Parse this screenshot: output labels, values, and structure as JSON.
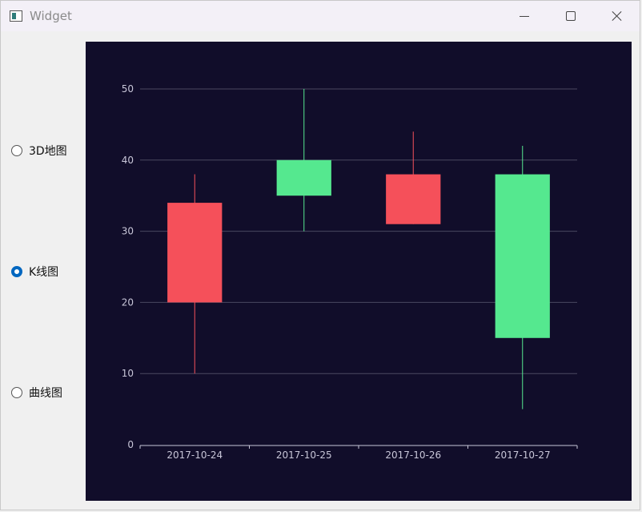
{
  "window": {
    "title": "Widget",
    "icon": "window-app-icon",
    "controls": [
      "minimize-icon",
      "maximize-icon",
      "close-icon"
    ]
  },
  "options": [
    {
      "label": "3D地图",
      "checked": false
    },
    {
      "label": "K线图",
      "checked": true
    },
    {
      "label": "曲线图",
      "checked": false
    }
  ],
  "colors": {
    "background": "#110d2a",
    "increasing": "#55e88f",
    "decreasing": "#f5505a",
    "grid": "#4a4860",
    "axis_text": "#c8c6d8",
    "radio_accent": "#0067c0"
  },
  "chart_data": {
    "type": "candlestick",
    "categories": [
      "2017-10-24",
      "2017-10-25",
      "2017-10-26",
      "2017-10-27"
    ],
    "series": [
      {
        "ohlc": [
          {
            "open": 20,
            "close": 34,
            "low": 10,
            "high": 38
          },
          {
            "open": 40,
            "close": 35,
            "low": 30,
            "high": 50
          },
          {
            "open": 31,
            "close": 38,
            "low": 31,
            "high": 44
          },
          {
            "open": 38,
            "close": 15,
            "low": 5,
            "high": 42
          }
        ]
      }
    ],
    "yticks": [
      0,
      10,
      20,
      30,
      40,
      50
    ],
    "ylim": [
      0,
      50
    ],
    "grid": true,
    "title": "",
    "xlabel": "",
    "ylabel": ""
  }
}
